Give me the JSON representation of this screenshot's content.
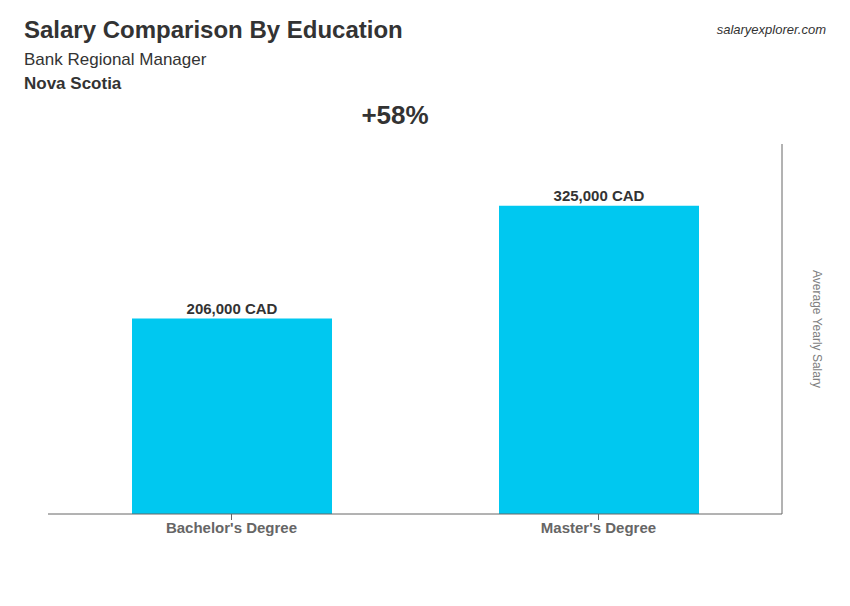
{
  "chart_data": {
    "type": "bar",
    "title": "Salary Comparison By Education",
    "subtitle": "Bank Regional Manager",
    "annotations": [
      "Nova Scotia",
      "salaryexplorer.com",
      "+58%"
    ],
    "ylabel": "Average Yearly Salary",
    "categories": [
      "Bachelor's Degree",
      "Master's Degree"
    ],
    "values": [
      206000,
      325000
    ],
    "value_labels": [
      "206,000 CAD",
      "325,000 CAD"
    ],
    "data_labels": true,
    "color": "#00c8f0",
    "ylim": [
      0,
      390000
    ],
    "tick_labels": "x",
    "grid": false
  }
}
